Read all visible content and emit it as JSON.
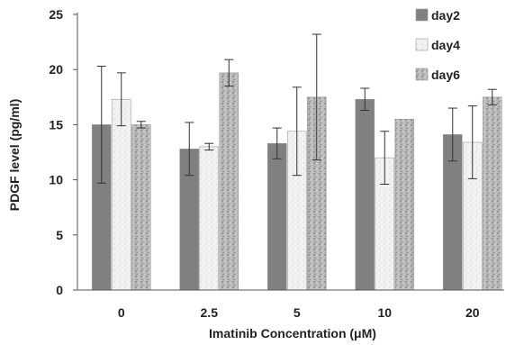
{
  "chart_data": {
    "type": "bar",
    "xlabel": "Imatinib Concentration (μM)",
    "ylabel": "PDGF level (pg/ml)",
    "categories": [
      "0",
      "2.5",
      "5",
      "10",
      "20"
    ],
    "ylim": [
      0,
      25
    ],
    "yticks": [
      "0",
      "5",
      "10",
      "15",
      "20",
      "25"
    ],
    "grid": false,
    "legend_position": "top-right",
    "series": [
      {
        "name": "day2",
        "values": [
          15.0,
          12.8,
          13.3,
          17.3,
          14.1
        ],
        "errors": [
          5.3,
          2.4,
          1.4,
          1.0,
          2.4
        ],
        "color": "#808080"
      },
      {
        "name": "day4",
        "values": [
          17.3,
          13.0,
          14.4,
          12.0,
          13.4
        ],
        "errors": [
          2.4,
          0.3,
          4.0,
          2.4,
          3.3
        ],
        "color": "#efefef"
      },
      {
        "name": "day6",
        "values": [
          15.0,
          19.7,
          17.5,
          15.5,
          17.5
        ],
        "errors": [
          0.3,
          1.2,
          5.7,
          0.0,
          0.7
        ],
        "color": "#a9a9a9"
      }
    ]
  }
}
